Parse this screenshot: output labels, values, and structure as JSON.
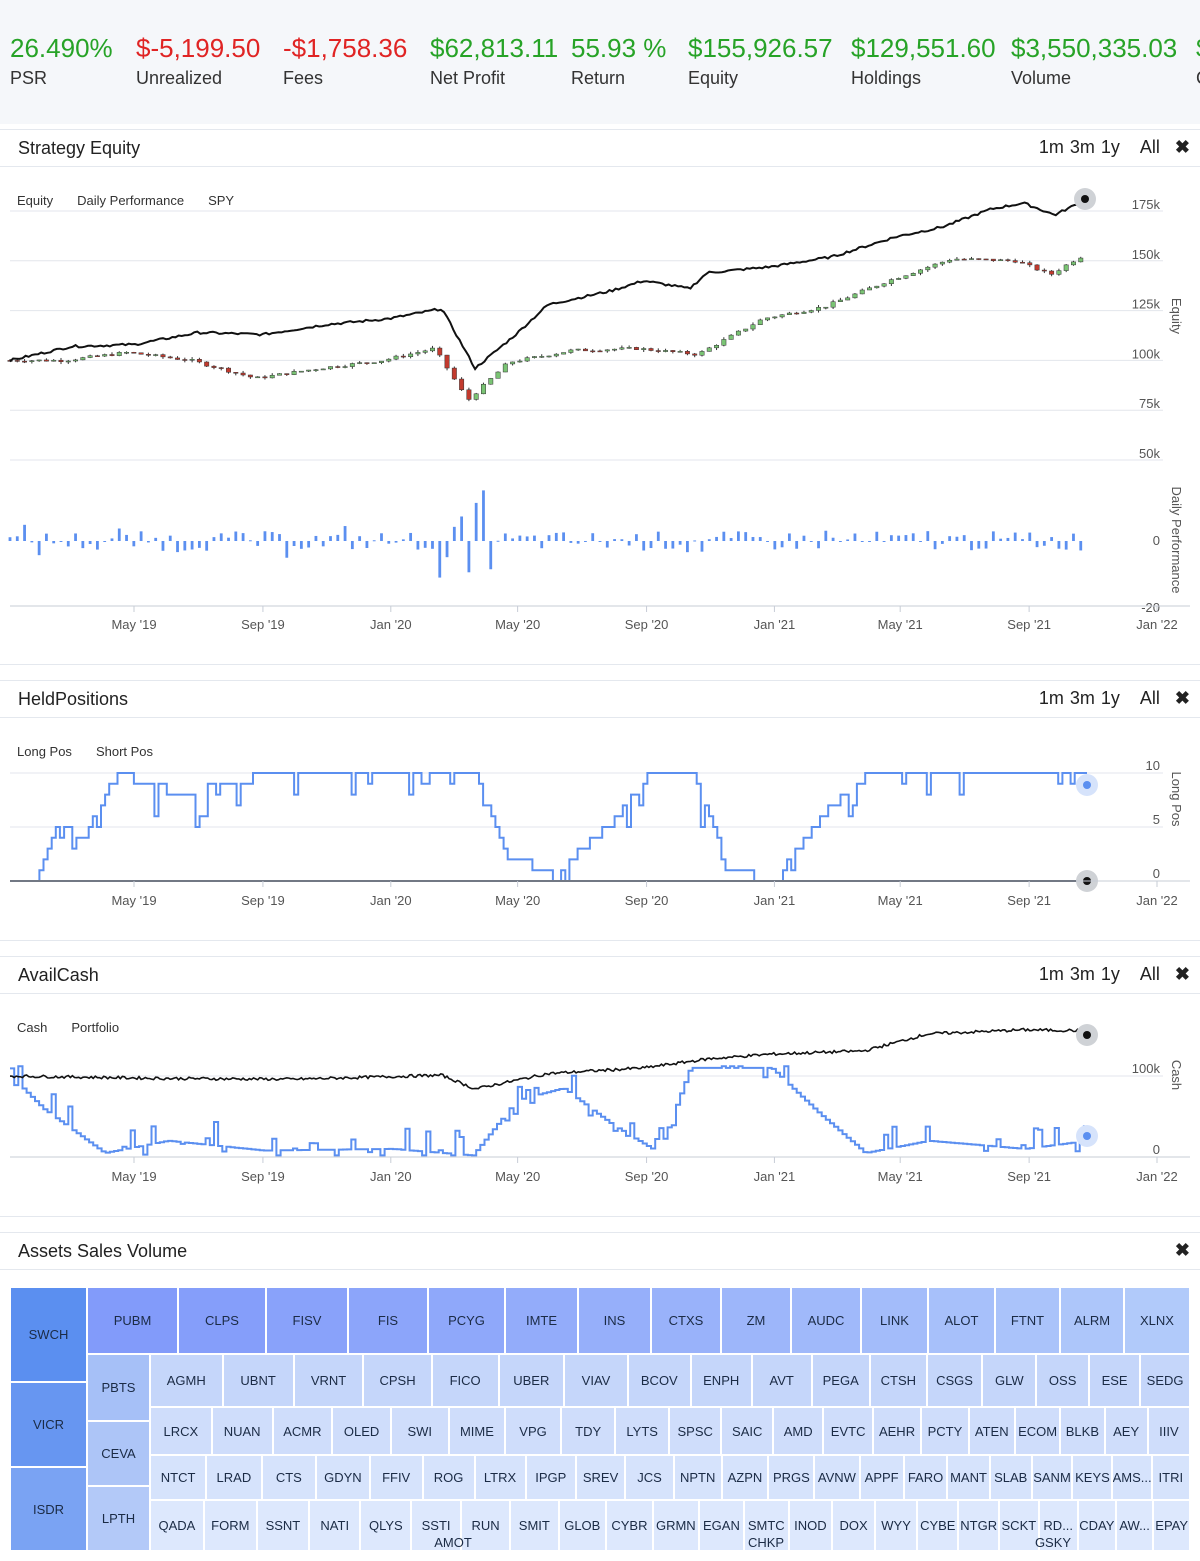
{
  "stats": [
    {
      "value": "26.490%",
      "label": "PSR",
      "tone": "pos"
    },
    {
      "value": "$-5,199.50",
      "label": "Unrealized",
      "tone": "neg"
    },
    {
      "value": "-$1,758.36",
      "label": "Fees",
      "tone": "neg"
    },
    {
      "value": "$62,813.11",
      "label": "Net Profit",
      "tone": "pos"
    },
    {
      "value": "55.93 %",
      "label": "Return",
      "tone": "pos"
    },
    {
      "value": "$155,926.57",
      "label": "Equity",
      "tone": "pos"
    },
    {
      "value": "$129,551.60",
      "label": "Holdings",
      "tone": "pos"
    },
    {
      "value": "$3,550,335.03",
      "label": "Volume",
      "tone": "pos"
    },
    {
      "value": "$",
      "label": "C",
      "tone": "pos"
    }
  ],
  "range_buttons": [
    "1m",
    "3m",
    "1y",
    "All"
  ],
  "panels": {
    "equity": {
      "title": "Strategy Equity",
      "legend": [
        "Equity",
        "Daily Performance",
        "SPY"
      ],
      "y_axis_label": "Equity",
      "y2_axis_label": "Daily Performance",
      "y_ticks": [
        "175k",
        "150k",
        "125k",
        "100k",
        "75k",
        "50k"
      ],
      "y2_ticks": [
        "0",
        "-20"
      ]
    },
    "held": {
      "title": "HeldPositions",
      "legend": [
        "Long Pos",
        "Short Pos"
      ],
      "y_axis_label": "Long Pos",
      "y_ticks": [
        "10",
        "5",
        "0"
      ]
    },
    "cash": {
      "title": "AvailCash",
      "legend": [
        "Cash",
        "Portfolio"
      ],
      "y_axis_label": "Cash",
      "y_ticks": [
        "100k",
        "0"
      ]
    },
    "assets": {
      "title": "Assets Sales Volume"
    }
  },
  "x_ticks": [
    "May '19",
    "Sep '19",
    "Jan '20",
    "May '20",
    "Sep '20",
    "Jan '21",
    "May '21",
    "Sep '21",
    "Jan '22"
  ],
  "colors": {
    "equity_line": "#111111",
    "bar_blue": "#5b8ff0",
    "candle_up": "#7ac474",
    "candle_down": "#c23a2e",
    "treemap_dark": "#5b8ff0",
    "treemap_light": "#dde8fd"
  },
  "chart_data": [
    {
      "type": "line",
      "title": "Strategy Equity",
      "series": [
        {
          "name": "Equity",
          "x": [
            "2019-01-01",
            "2019-03-01",
            "2019-05-01",
            "2019-07-01",
            "2019-09-01",
            "2019-11-01",
            "2020-01-01",
            "2020-02-20",
            "2020-03-23",
            "2020-05-01",
            "2020-06-01",
            "2020-08-01",
            "2020-09-01",
            "2020-10-15",
            "2020-11-01",
            "2021-01-01",
            "2021-03-01",
            "2021-05-01",
            "2021-06-15",
            "2021-08-01",
            "2021-09-01",
            "2021-10-01",
            "2021-11-01"
          ],
          "values": [
            100000,
            107000,
            108000,
            114000,
            113000,
            118000,
            121000,
            126000,
            96000,
            113000,
            128000,
            135000,
            140000,
            136000,
            144000,
            147000,
            152000,
            162000,
            167000,
            176000,
            179000,
            173000,
            181000
          ]
        },
        {
          "name": "SPY",
          "x": [
            "2019-01-01",
            "2019-03-01",
            "2019-05-01",
            "2019-07-01",
            "2019-09-01",
            "2019-11-01",
            "2020-01-01",
            "2020-02-20",
            "2020-03-23",
            "2020-05-01",
            "2020-07-01",
            "2020-09-01",
            "2020-10-30",
            "2021-01-01",
            "2021-03-01",
            "2021-05-01",
            "2021-07-01",
            "2021-09-01",
            "2021-10-04",
            "2021-11-01"
          ],
          "values": [
            100000,
            100000,
            104000,
            100000,
            91000,
            96000,
            100000,
            106000,
            80000,
            99000,
            105000,
            106000,
            103000,
            121000,
            127000,
            140000,
            151000,
            150000,
            143000,
            152000
          ]
        }
      ],
      "ylim": [
        50000,
        175000
      ]
    },
    {
      "type": "line",
      "title": "HeldPositions",
      "series": [
        {
          "name": "Long Pos",
          "x": [
            "2019-01-10",
            "2019-02-01",
            "2019-03-01",
            "2019-04-01",
            "2019-06-01",
            "2019-09-01",
            "2020-01-01",
            "2020-03-15",
            "2020-04-15",
            "2020-06-01",
            "2020-08-01",
            "2020-09-01",
            "2020-10-15",
            "2020-11-15",
            "2021-01-01",
            "2021-02-15",
            "2021-04-01",
            "2021-06-01",
            "2021-09-01",
            "2021-11-01"
          ],
          "values": [
            0,
            5,
            4,
            10,
            8,
            10,
            10,
            10,
            2,
            1,
            6,
            10,
            10,
            1,
            0,
            6,
            10,
            10,
            10,
            10
          ]
        },
        {
          "name": "Short Pos",
          "x": [
            "2019-01-01",
            "2021-11-01"
          ],
          "values": [
            0,
            0
          ]
        }
      ],
      "ylim": [
        0,
        10
      ]
    },
    {
      "type": "line",
      "title": "AvailCash",
      "series": [
        {
          "name": "Cash",
          "x": [
            "2019-01-01",
            "2019-02-01",
            "2019-04-01",
            "2019-06-01",
            "2019-09-01",
            "2020-01-01",
            "2020-03-20",
            "2020-05-01",
            "2020-06-15",
            "2020-08-01",
            "2020-09-15",
            "2020-10-15",
            "2021-01-01",
            "2021-02-15",
            "2021-04-01",
            "2021-06-01",
            "2021-09-01",
            "2021-11-01"
          ],
          "values": [
            100000,
            60000,
            5000,
            20000,
            8000,
            10000,
            2000,
            70000,
            85000,
            40000,
            5000,
            110000,
            110000,
            55000,
            5000,
            20000,
            10000,
            20000
          ]
        },
        {
          "name": "Portfolio",
          "x": [
            "2019-01-01",
            "2019-06-01",
            "2019-10-01",
            "2020-02-20",
            "2020-03-23",
            "2020-06-01",
            "2020-09-01",
            "2020-11-01",
            "2021-01-01",
            "2021-04-01",
            "2021-06-01",
            "2021-09-01",
            "2021-11-01"
          ],
          "values": [
            100000,
            97000,
            96000,
            101000,
            84000,
            103000,
            110000,
            121000,
            127000,
            131000,
            152000,
            157000,
            156000
          ]
        }
      ],
      "ylim": [
        0,
        150000
      ]
    }
  ],
  "treemap": {
    "col1": [
      "SWCH",
      "VICR",
      "ISDR"
    ],
    "row1": [
      "PUBM",
      "CLPS",
      "FISV",
      "FIS",
      "PCYG",
      "IMTE",
      "INS",
      "CTXS",
      "ZM",
      "AUDC",
      "LINK",
      "ALOT",
      "FTNT",
      "ALRM",
      "XLNX"
    ],
    "col2": [
      "PBTS",
      "CEVA",
      "LPTH"
    ],
    "row2": [
      "AGMH",
      "UBNT",
      "VRNT",
      "CPSH",
      "FICO",
      "UBER",
      "VIAV",
      "BCOV",
      "ENPH",
      "AVT",
      "PEGA",
      "CTSH",
      "CSGS",
      "GLW",
      "OSS",
      "ESE",
      "SEDG"
    ],
    "row3": [
      "LRCX",
      "NUAN",
      "ACMR",
      "OLED",
      "SWI",
      "MIME",
      "VPG",
      "TDY",
      "LYTS",
      "SPSC",
      "SAIC",
      "AMD",
      "EVTC",
      "AEHR",
      "PCTY",
      "ATEN",
      "ECOM",
      "BLKB",
      "AEY",
      "IIIV"
    ],
    "row4": [
      "NTCT",
      "LRAD",
      "CTS",
      "GDYN",
      "FFIV",
      "ROG",
      "LTRX",
      "IPGP",
      "SREV",
      "JCS",
      "NPTN",
      "AZPN",
      "PRGS",
      "AVNW",
      "APPF",
      "FARO",
      "MANT",
      "SLAB",
      "SANM",
      "KEYS",
      "AMS...",
      "ITRI"
    ],
    "row5": [
      "QADA",
      "FORM",
      "SSNT",
      "NATI",
      "QLYS",
      "SSTI",
      "RUN",
      "SMIT",
      "GLOB",
      "CYBR",
      "GRMN",
      "EGAN",
      "SMTC",
      "INOD",
      "DOX",
      "WYY",
      "CYBE",
      "NTGR",
      "SCKT",
      "RD...",
      "CDAY",
      "AW...",
      "EPAY"
    ],
    "row6": [
      "AMOT",
      "CHKP",
      "GSKY"
    ]
  }
}
